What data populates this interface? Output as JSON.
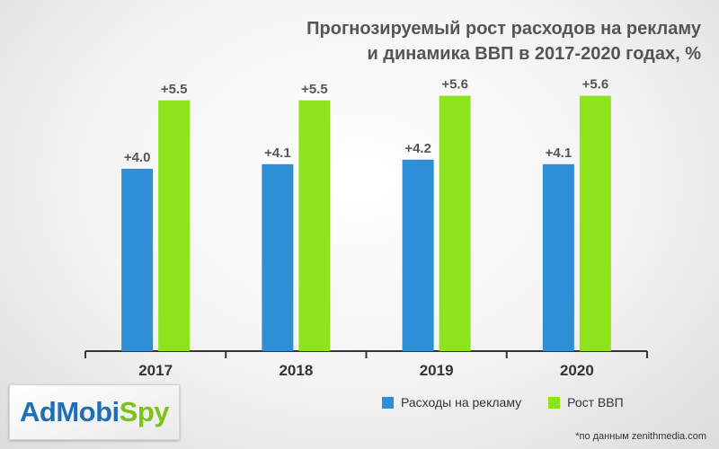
{
  "title_line1": "Прогнозируемый рост расходов на рекламу",
  "title_line2": "и динамика ВВП в 2017-2020 годах, %",
  "logo": {
    "part1": "AdMobi",
    "part2": "Spy"
  },
  "source": "*по данным zenithmedia.com",
  "colors": {
    "ad_spend": "#2f8fd6",
    "gdp": "#8ee41b",
    "axis": "#333333",
    "label": "#555555"
  },
  "chart_data": {
    "type": "bar",
    "categories": [
      "2017",
      "2018",
      "2019",
      "2020"
    ],
    "series": [
      {
        "name": "Расходы на рекламу",
        "values": [
          4.0,
          4.1,
          4.2,
          4.1
        ],
        "labels": [
          "+4.0",
          "+4.1",
          "+4.2",
          "+4.1"
        ]
      },
      {
        "name": "Рост ВВП",
        "values": [
          5.5,
          5.5,
          5.6,
          5.6
        ],
        "labels": [
          "+5.5",
          "+5.5",
          "+5.6",
          "+5.6"
        ]
      }
    ],
    "ylim": [
      0,
      6.5
    ],
    "grid": false,
    "legend": "bottom-right"
  }
}
